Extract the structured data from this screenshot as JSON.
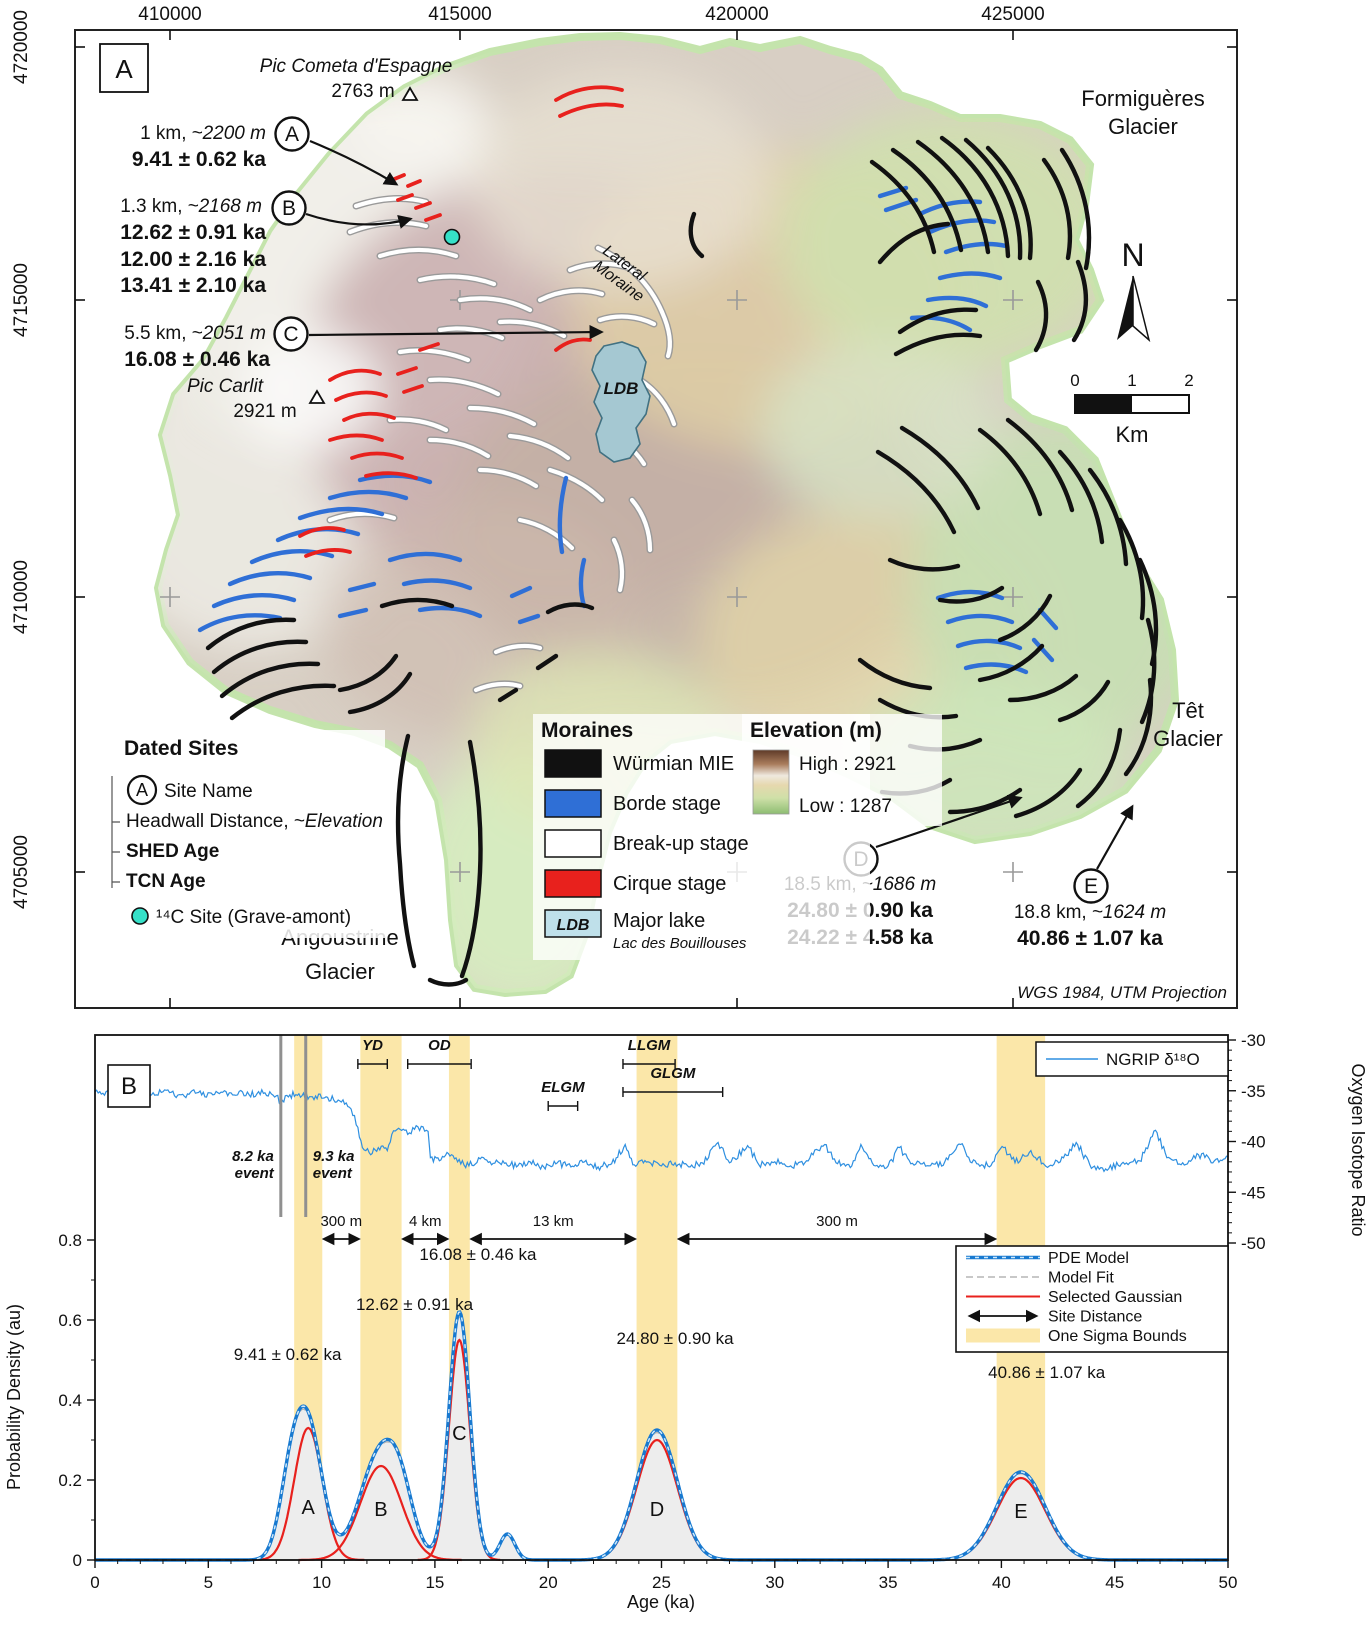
{
  "figure": {
    "panel_a": "A",
    "panel_b": "B"
  },
  "map": {
    "axis": {
      "top": [
        "410000",
        "415000",
        "420000",
        "425000"
      ],
      "left": [
        "4720000",
        "4715000",
        "4710000",
        "4705000"
      ]
    },
    "peaks": {
      "cometa_name": "Pic Cometa d'Espagne",
      "cometa_elev": "2763 m",
      "carlit_name": "Pic Carlit",
      "carlit_elev": "2921 m"
    },
    "glaciers": {
      "formigueres1": "Formiguères",
      "formigueres2": "Glacier",
      "tet1": "Têt",
      "tet2": "Glacier",
      "angoustrine1": "Angoustrine",
      "angoustrine2": "Glacier"
    },
    "lateral1": "Lateral",
    "lateral2": "Moraine",
    "lake_label": "LDB",
    "north": "N",
    "scalebar": {
      "n0": "0",
      "n1": "1",
      "n2": "2",
      "unit": "Km"
    },
    "projection": "WGS 1984, UTM Projection",
    "sites": {
      "A": {
        "letter": "A",
        "dist": "1 km,",
        "elev": "~2200 m",
        "shed": "9.41 ± 0.62 ka"
      },
      "B": {
        "letter": "B",
        "dist": "1.3 km,",
        "elev": "~2168 m",
        "shed": "12.62 ± 0.91 ka",
        "tcn1": "12.00 ± 2.16 ka",
        "tcn2": "13.41 ± 2.10 ka"
      },
      "C": {
        "letter": "C",
        "dist": "5.5 km,",
        "elev": "~2051 m",
        "shed": "16.08 ± 0.46 ka"
      },
      "D": {
        "letter": "D",
        "dist": "18.5 km,",
        "elev": "~1686 m",
        "shed": "24.80 ± 0.90 ka",
        "tcn1": "24.22 ± 4.58 ka"
      },
      "E": {
        "letter": "E",
        "dist": "18.8 km,",
        "elev": "~1624 m",
        "shed": "40.86 ± 1.07 ka"
      }
    },
    "legend_dated": {
      "title": "Dated Sites",
      "letter": "A",
      "site_name": "Site Name",
      "headwall": "Headwall Distance,",
      "elevation": "~Elevation",
      "shed": "SHED Age",
      "tcn": "TCN Age",
      "c14": "¹⁴C Site (Grave-amont)"
    },
    "legend_moraines": {
      "title": "Moraines",
      "wurmian": "Würmian MIE",
      "borde": "Borde stage",
      "breakup": "Break-up stage",
      "cirque": "Cirque stage",
      "ldb": "LDB",
      "lake": "Major lake",
      "lake_sub": "Lac des Bouillouses"
    },
    "legend_elev": {
      "title": "Elevation (m)",
      "high": "High : 2921",
      "low": "Low : 1287"
    }
  },
  "chart_data": {
    "type": "line",
    "panel_label": "B",
    "xlabel": "Age (ka)",
    "ylabel_left": "Probability Density (au)",
    "ylabel_right": "Oxygen Isotope Ratio",
    "xlim": [
      0,
      50
    ],
    "ylim_left": [
      0,
      1.31
    ],
    "ylim_right": [
      -30,
      -50
    ],
    "x_ticks": [
      0,
      5,
      10,
      15,
      20,
      25,
      30,
      35,
      40,
      45,
      50
    ],
    "y_ticks_left": [
      "0",
      "0.2",
      "0.4",
      "0.6",
      "0.8"
    ],
    "y_ticks_right": [
      "-30",
      "-35",
      "-40",
      "-45",
      "-50"
    ],
    "colors": {
      "ngrip": "#2e8fe0",
      "pde": "#1779d0",
      "pde_dash": "#cfe9fb",
      "fit": "#b5b5b5",
      "gauss": "#e8211d",
      "band": "#fbe7a9",
      "fill": "#ededed",
      "event": "#909090"
    },
    "sites": [
      {
        "letter": "A",
        "mean": 9.41,
        "sigma": 0.62,
        "amp_pde": 0.33,
        "amp_gauss": 0.33,
        "age_label": "9.41 ± 0.62 ka",
        "label_x": 8.5,
        "label_v": 0.5,
        "letter_v": 0.115
      },
      {
        "letter": "B",
        "mean": 12.62,
        "sigma": 0.91,
        "amp_pde": 0.27,
        "amp_gauss": 0.235,
        "age_label": "12.62 ± 0.91 ka",
        "label_x": 14.1,
        "label_v": 0.625,
        "letter_v": 0.11
      },
      {
        "letter": "C",
        "mean": 16.08,
        "sigma": 0.46,
        "amp_pde": 0.62,
        "amp_gauss": 0.55,
        "age_label": "16.08 ± 0.46 ka",
        "label_x": 16.9,
        "label_v": 0.75,
        "letter_v": 0.3
      },
      {
        "letter": "D",
        "mean": 24.8,
        "sigma": 0.9,
        "amp_pde": 0.325,
        "amp_gauss": 0.3,
        "age_label": "24.80 ± 0.90 ka",
        "label_x": 25.6,
        "label_v": 0.54,
        "letter_v": 0.11
      },
      {
        "letter": "E",
        "mean": 40.86,
        "sigma": 1.07,
        "amp_pde": 0.22,
        "amp_gauss": 0.205,
        "age_label": "40.86 ± 1.07 ka",
        "label_x": 42.0,
        "label_v": 0.455,
        "letter_v": 0.105
      }
    ],
    "extra_bumps": [
      {
        "mean": 8.6,
        "sigma": 0.5,
        "amp": 0.15
      },
      {
        "mean": 13.5,
        "sigma": 0.55,
        "amp": 0.08
      },
      {
        "mean": 18.2,
        "sigma": 0.33,
        "amp": 0.065
      }
    ],
    "events": [
      {
        "age": 8.2,
        "lines": [
          "8.2 ka",
          "event"
        ],
        "side": "left"
      },
      {
        "age": 9.3,
        "lines": [
          "9.3 ka",
          "event"
        ],
        "side": "right"
      }
    ],
    "intervals": [
      {
        "label": "YD",
        "start": 11.6,
        "end": 12.9,
        "level": 0
      },
      {
        "label": "OD",
        "start": 13.8,
        "end": 16.6,
        "level": 0
      },
      {
        "label": "ELGM",
        "start": 20.0,
        "end": 21.3,
        "level": 2
      },
      {
        "label": "LLGM",
        "start": 23.3,
        "end": 25.6,
        "level": 0
      },
      {
        "label": "GLGM",
        "start": 23.3,
        "end": 27.7,
        "level": 1
      }
    ],
    "distances": [
      {
        "label": "300 m",
        "from": 0,
        "to": 1
      },
      {
        "label": "4 km",
        "from": 1,
        "to": 2
      },
      {
        "label": "13 km",
        "from": 2,
        "to": 3
      },
      {
        "label": "300 m",
        "from": 3,
        "to": 4
      }
    ],
    "legend": {
      "items": [
        {
          "label": "PDE Model",
          "style": "pde"
        },
        {
          "label": "Model Fit",
          "style": "fit"
        },
        {
          "label": "Selected Gaussian",
          "style": "gauss"
        },
        {
          "label": "Site Distance",
          "style": "arrow"
        },
        {
          "label": "One Sigma Bounds",
          "style": "band"
        }
      ]
    },
    "ngrip": {
      "label": "NGRIP δ¹⁸O",
      "noise": 0.35,
      "points": [
        [
          0,
          -35.1
        ],
        [
          0.7,
          -35.3
        ],
        [
          1.5,
          -35.0
        ],
        [
          2.2,
          -35.3
        ],
        [
          3,
          -35.1
        ],
        [
          3.8,
          -35.4
        ],
        [
          4.5,
          -35.2
        ],
        [
          5.2,
          -35.4
        ],
        [
          6,
          -35.2
        ],
        [
          6.8,
          -35.4
        ],
        [
          7.5,
          -35.2
        ],
        [
          8,
          -35.5
        ],
        [
          8.2,
          -36.4
        ],
        [
          8.4,
          -35.5
        ],
        [
          9,
          -35.3
        ],
        [
          9.6,
          -35.6
        ],
        [
          10.2,
          -35.6
        ],
        [
          10.8,
          -36.0
        ],
        [
          11.3,
          -36.8
        ],
        [
          11.6,
          -38.6
        ],
        [
          11.8,
          -40.6
        ],
        [
          12.1,
          -41.1
        ],
        [
          12.5,
          -40.6
        ],
        [
          12.9,
          -40.9
        ],
        [
          13.1,
          -39.3
        ],
        [
          13.4,
          -38.7
        ],
        [
          13.8,
          -39.3
        ],
        [
          14.1,
          -38.8
        ],
        [
          14.4,
          -38.5
        ],
        [
          14.7,
          -39.0
        ],
        [
          14.8,
          -41.6
        ],
        [
          15.2,
          -41.9
        ],
        [
          15.6,
          -41.2
        ],
        [
          16,
          -42.0
        ],
        [
          16.5,
          -42.4
        ],
        [
          17,
          -41.7
        ],
        [
          17.5,
          -42.3
        ],
        [
          18,
          -41.9
        ],
        [
          18.6,
          -42.5
        ],
        [
          19.2,
          -42.0
        ],
        [
          19.8,
          -42.5
        ],
        [
          20.4,
          -42.1
        ],
        [
          21,
          -42.5
        ],
        [
          21.6,
          -42.0
        ],
        [
          22.2,
          -42.5
        ],
        [
          22.8,
          -42.2
        ],
        [
          23.4,
          -40.3
        ],
        [
          23.8,
          -42.3
        ],
        [
          24.4,
          -42.0
        ],
        [
          25,
          -42.4
        ],
        [
          25.6,
          -42.1
        ],
        [
          26.2,
          -42.5
        ],
        [
          26.8,
          -42.1
        ],
        [
          27.5,
          -40.1
        ],
        [
          28,
          -42.1
        ],
        [
          28.8,
          -40.4
        ],
        [
          29.3,
          -42.3
        ],
        [
          30,
          -42.0
        ],
        [
          30.7,
          -42.4
        ],
        [
          31.4,
          -41.9
        ],
        [
          32.2,
          -40.3
        ],
        [
          32.7,
          -42.1
        ],
        [
          33.4,
          -42.4
        ],
        [
          33.8,
          -40.3
        ],
        [
          34.3,
          -42.1
        ],
        [
          35,
          -42.4
        ],
        [
          35.5,
          -40.6
        ],
        [
          36,
          -42.2
        ],
        [
          36.8,
          -42.4
        ],
        [
          37.5,
          -42.0
        ],
        [
          38.2,
          -40.3
        ],
        [
          38.7,
          -42.1
        ],
        [
          39.4,
          -42.4
        ],
        [
          40.1,
          -40.6
        ],
        [
          40.6,
          -42.1
        ],
        [
          41.3,
          -40.9
        ],
        [
          41.9,
          -42.3
        ],
        [
          42.6,
          -42.0
        ],
        [
          43.3,
          -40.1
        ],
        [
          43.9,
          -42.3
        ],
        [
          44.6,
          -42.7
        ],
        [
          45.3,
          -42.2
        ],
        [
          46.1,
          -41.9
        ],
        [
          46.8,
          -38.9
        ],
        [
          47.3,
          -41.6
        ],
        [
          48,
          -42.1
        ],
        [
          48.7,
          -41.3
        ],
        [
          49.4,
          -41.9
        ],
        [
          50,
          -41.5
        ]
      ]
    }
  }
}
